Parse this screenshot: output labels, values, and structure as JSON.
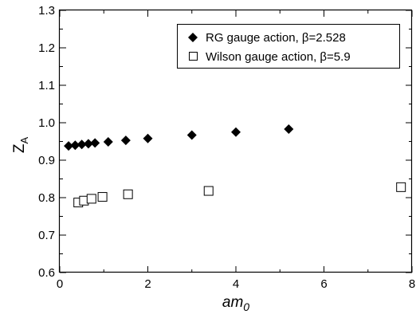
{
  "chart_data": {
    "type": "scatter",
    "xlabel": "am",
    "xlabel_sub": "0",
    "ylabel": "Z",
    "ylabel_sub": "A",
    "xlim": [
      0,
      8
    ],
    "ylim": [
      0.6,
      1.3
    ],
    "x_ticks": [
      0,
      2,
      4,
      6,
      8
    ],
    "y_ticks": [
      0.6,
      0.7,
      0.8,
      0.9,
      1.0,
      1.1,
      1.2,
      1.3
    ],
    "x_tick_labels": [
      "0",
      "2",
      "4",
      "6",
      "8"
    ],
    "y_tick_labels": [
      "0.6",
      "0.7",
      "0.8",
      "0.9",
      "1.0",
      "1.1",
      "1.2",
      "1.3"
    ],
    "grid": false,
    "legend_position": "top-right",
    "series": [
      {
        "name": "RG gauge action, β=2.528",
        "marker": "filled-diamond",
        "color": "#000000",
        "points": [
          {
            "x": 0.2,
            "y": 0.938
          },
          {
            "x": 0.35,
            "y": 0.94
          },
          {
            "x": 0.5,
            "y": 0.942
          },
          {
            "x": 0.65,
            "y": 0.944
          },
          {
            "x": 0.8,
            "y": 0.946
          },
          {
            "x": 1.1,
            "y": 0.949
          },
          {
            "x": 1.5,
            "y": 0.953
          },
          {
            "x": 2.0,
            "y": 0.958
          },
          {
            "x": 3.0,
            "y": 0.967
          },
          {
            "x": 4.0,
            "y": 0.975
          },
          {
            "x": 5.2,
            "y": 0.983
          }
        ]
      },
      {
        "name": "Wilson gauge action, β=5.9",
        "marker": "open-square",
        "color": "#000000",
        "points": [
          {
            "x": 0.42,
            "y": 0.787
          },
          {
            "x": 0.55,
            "y": 0.792
          },
          {
            "x": 0.72,
            "y": 0.797
          },
          {
            "x": 0.97,
            "y": 0.802
          },
          {
            "x": 1.55,
            "y": 0.809
          },
          {
            "x": 3.38,
            "y": 0.818
          },
          {
            "x": 7.75,
            "y": 0.828
          }
        ]
      }
    ]
  }
}
